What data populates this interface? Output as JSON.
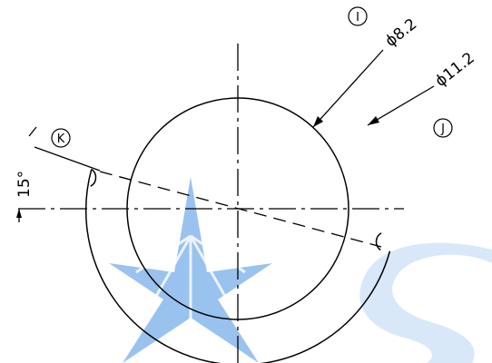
{
  "drawing": {
    "callouts": {
      "inner": "I",
      "outer": "J",
      "notch": "K"
    },
    "dimensions": {
      "inner_diameter": "ϕ8.2",
      "outer_diameter": "ϕ11.2",
      "notch_angle": "15°"
    },
    "watermark_colors": {
      "star": "#4a90e2",
      "letter": "#cfe2f5"
    },
    "line_color": "#000000"
  }
}
